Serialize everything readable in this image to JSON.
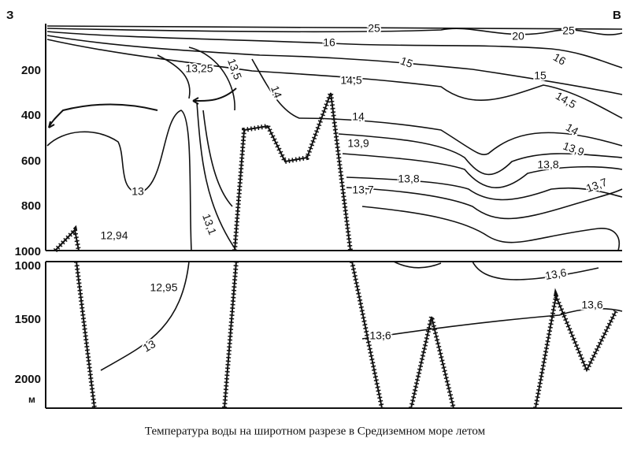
{
  "title": "Температура воды на широтном разрезе в Средиземном море летом",
  "directions": {
    "west": "З",
    "east": "В"
  },
  "depth_axis": {
    "upper": [
      "200",
      "400",
      "600",
      "800",
      "1000"
    ],
    "lower": [
      "1000",
      "1500",
      "2000"
    ],
    "unit": "м"
  },
  "isotherm_labels": [
    "25",
    "20",
    "25",
    "16",
    "16",
    "15",
    "15",
    "13,25",
    "13,5",
    "14,5",
    "14,5",
    "14",
    "14",
    "14",
    "13,9",
    "13,9",
    "13,8",
    "13,8",
    "13,7",
    "13,7",
    "13",
    "13,1",
    "12,94",
    "12,95",
    "13",
    "13,6",
    "13,6",
    "13,6"
  ]
}
